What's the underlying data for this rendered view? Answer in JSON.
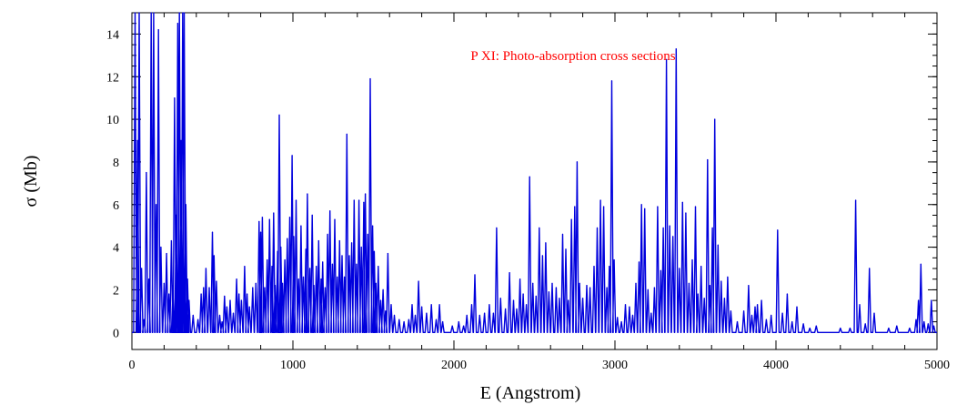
{
  "chart_data": {
    "type": "line",
    "title": "P XI: Photo-absorption cross sections",
    "xlabel": "E (Angstrom)",
    "ylabel": "σ (Mb)",
    "xlim": [
      0,
      5000
    ],
    "ylim": [
      -0.8,
      15
    ],
    "x_ticks": [
      0,
      1000,
      2000,
      3000,
      4000,
      5000
    ],
    "y_ticks": [
      0,
      2,
      4,
      6,
      8,
      10,
      12,
      14
    ],
    "x_minor_step": 200,
    "y_minor_step": 0.5,
    "grid": false,
    "colors": {
      "line": "#0000dd",
      "title": "#ff0000"
    },
    "series": [
      {
        "peaks": [
          [
            20,
            15
          ],
          [
            35,
            9
          ],
          [
            45,
            15
          ],
          [
            60,
            3
          ],
          [
            75,
            0.6
          ],
          [
            90,
            7.5
          ],
          [
            105,
            2.5
          ],
          [
            120,
            15
          ],
          [
            135,
            15
          ],
          [
            150,
            6
          ],
          [
            165,
            14.2
          ],
          [
            180,
            4
          ],
          [
            200,
            2.3
          ],
          [
            215,
            3.7
          ],
          [
            230,
            1.8
          ],
          [
            245,
            4.3
          ],
          [
            255,
            2.2
          ],
          [
            265,
            11
          ],
          [
            275,
            5.5
          ],
          [
            285,
            14.5
          ],
          [
            295,
            15
          ],
          [
            305,
            9
          ],
          [
            315,
            15
          ],
          [
            325,
            15
          ],
          [
            335,
            6
          ],
          [
            345,
            2.5
          ],
          [
            355,
            1.5
          ],
          [
            380,
            0.8
          ],
          [
            410,
            0.6
          ],
          [
            430,
            1.8
          ],
          [
            445,
            2.1
          ],
          [
            460,
            3
          ],
          [
            480,
            2.1
          ],
          [
            500,
            4.7
          ],
          [
            510,
            3.6
          ],
          [
            525,
            2.4
          ],
          [
            545,
            0.8
          ],
          [
            560,
            0.5
          ],
          [
            575,
            1.7
          ],
          [
            590,
            1.2
          ],
          [
            610,
            1.5
          ],
          [
            630,
            0.9
          ],
          [
            650,
            2.5
          ],
          [
            665,
            1.8
          ],
          [
            680,
            1.5
          ],
          [
            700,
            3.1
          ],
          [
            715,
            1.8
          ],
          [
            730,
            1.2
          ],
          [
            750,
            2.1
          ],
          [
            770,
            2.3
          ],
          [
            790,
            5.2
          ],
          [
            800,
            4.7
          ],
          [
            810,
            5.4
          ],
          [
            825,
            2.1
          ],
          [
            840,
            3.4
          ],
          [
            855,
            5.3
          ],
          [
            870,
            3.1
          ],
          [
            880,
            5.6
          ],
          [
            890,
            2.2
          ],
          [
            905,
            3.8
          ],
          [
            915,
            10.2
          ],
          [
            925,
            4
          ],
          [
            935,
            2.3
          ],
          [
            950,
            3.4
          ],
          [
            965,
            4.4
          ],
          [
            980,
            5.4
          ],
          [
            995,
            8.3
          ],
          [
            1005,
            4.5
          ],
          [
            1020,
            6.2
          ],
          [
            1035,
            2.5
          ],
          [
            1050,
            5
          ],
          [
            1065,
            2.6
          ],
          [
            1080,
            3.9
          ],
          [
            1090,
            6.5
          ],
          [
            1105,
            3
          ],
          [
            1120,
            5.5
          ],
          [
            1130,
            2.2
          ],
          [
            1145,
            3.1
          ],
          [
            1160,
            4.3
          ],
          [
            1175,
            2.5
          ],
          [
            1185,
            3.3
          ],
          [
            1200,
            2.1
          ],
          [
            1215,
            4.6
          ],
          [
            1230,
            5.7
          ],
          [
            1245,
            3.2
          ],
          [
            1260,
            5.3
          ],
          [
            1275,
            2.6
          ],
          [
            1290,
            4.3
          ],
          [
            1305,
            3.6
          ],
          [
            1320,
            2.6
          ],
          [
            1335,
            9.3
          ],
          [
            1350,
            3.6
          ],
          [
            1365,
            4.2
          ],
          [
            1380,
            6.2
          ],
          [
            1395,
            3.2
          ],
          [
            1410,
            6.2
          ],
          [
            1425,
            4
          ],
          [
            1440,
            6.1
          ],
          [
            1450,
            6.5
          ],
          [
            1465,
            4.6
          ],
          [
            1480,
            11.9
          ],
          [
            1495,
            5
          ],
          [
            1505,
            3.8
          ],
          [
            1515,
            2.3
          ],
          [
            1530,
            3.1
          ],
          [
            1545,
            1.5
          ],
          [
            1560,
            2
          ],
          [
            1575,
            1
          ],
          [
            1590,
            3.7
          ],
          [
            1610,
            1.3
          ],
          [
            1630,
            0.8
          ],
          [
            1660,
            0.6
          ],
          [
            1690,
            0.5
          ],
          [
            1720,
            0.6
          ],
          [
            1740,
            1.3
          ],
          [
            1760,
            0.8
          ],
          [
            1780,
            2.4
          ],
          [
            1800,
            1.2
          ],
          [
            1830,
            0.9
          ],
          [
            1860,
            1.3
          ],
          [
            1890,
            0.6
          ],
          [
            1910,
            1.3
          ],
          [
            1930,
            0.5
          ],
          [
            1990,
            0.3
          ],
          [
            2030,
            0.5
          ],
          [
            2060,
            0.3
          ],
          [
            2080,
            0.8
          ],
          [
            2110,
            1.3
          ],
          [
            2130,
            2.7
          ],
          [
            2160,
            0.8
          ],
          [
            2190,
            0.9
          ],
          [
            2220,
            1.3
          ],
          [
            2245,
            0.9
          ],
          [
            2265,
            4.9
          ],
          [
            2290,
            1.6
          ],
          [
            2320,
            1.1
          ],
          [
            2345,
            2.8
          ],
          [
            2370,
            1.5
          ],
          [
            2390,
            1.1
          ],
          [
            2410,
            2.5
          ],
          [
            2430,
            1.8
          ],
          [
            2450,
            1.3
          ],
          [
            2470,
            7.3
          ],
          [
            2490,
            2.3
          ],
          [
            2510,
            1.7
          ],
          [
            2530,
            4.9
          ],
          [
            2550,
            3.6
          ],
          [
            2570,
            4.2
          ],
          [
            2590,
            1.9
          ],
          [
            2610,
            2.3
          ],
          [
            2635,
            2.1
          ],
          [
            2655,
            1.6
          ],
          [
            2675,
            4.6
          ],
          [
            2695,
            3.9
          ],
          [
            2710,
            1.5
          ],
          [
            2730,
            5.3
          ],
          [
            2750,
            5.9
          ],
          [
            2765,
            8
          ],
          [
            2780,
            2.3
          ],
          [
            2800,
            1.6
          ],
          [
            2825,
            2.2
          ],
          [
            2845,
            2.1
          ],
          [
            2870,
            3.1
          ],
          [
            2890,
            4.9
          ],
          [
            2910,
            6.2
          ],
          [
            2930,
            5.9
          ],
          [
            2950,
            2.1
          ],
          [
            2965,
            3.1
          ],
          [
            2980,
            11.8
          ],
          [
            2995,
            3.4
          ],
          [
            3015,
            0.7
          ],
          [
            3040,
            0.5
          ],
          [
            3065,
            1.3
          ],
          [
            3090,
            1.2
          ],
          [
            3110,
            0.8
          ],
          [
            3130,
            2.3
          ],
          [
            3150,
            3.3
          ],
          [
            3165,
            6
          ],
          [
            3185,
            5.8
          ],
          [
            3205,
            2
          ],
          [
            3225,
            0.9
          ],
          [
            3245,
            2.1
          ],
          [
            3265,
            5.9
          ],
          [
            3285,
            2.9
          ],
          [
            3300,
            4.9
          ],
          [
            3320,
            12.8
          ],
          [
            3340,
            5
          ],
          [
            3360,
            4.5
          ],
          [
            3380,
            13.3
          ],
          [
            3400,
            3
          ],
          [
            3420,
            6.1
          ],
          [
            3440,
            5.6
          ],
          [
            3460,
            2.3
          ],
          [
            3480,
            3.4
          ],
          [
            3500,
            5.9
          ],
          [
            3515,
            1.8
          ],
          [
            3535,
            3.1
          ],
          [
            3555,
            1.6
          ],
          [
            3575,
            8.1
          ],
          [
            3590,
            2.2
          ],
          [
            3605,
            4.9
          ],
          [
            3620,
            10
          ],
          [
            3640,
            4.1
          ],
          [
            3660,
            2.4
          ],
          [
            3680,
            1.6
          ],
          [
            3700,
            2.6
          ],
          [
            3720,
            1
          ],
          [
            3760,
            0.5
          ],
          [
            3800,
            1
          ],
          [
            3830,
            2.2
          ],
          [
            3850,
            0.8
          ],
          [
            3870,
            1.2
          ],
          [
            3885,
            1.3
          ],
          [
            3910,
            1.5
          ],
          [
            3940,
            0.6
          ],
          [
            3970,
            0.8
          ],
          [
            4010,
            4.8
          ],
          [
            4040,
            0.9
          ],
          [
            4070,
            1.8
          ],
          [
            4100,
            0.5
          ],
          [
            4130,
            1.2
          ],
          [
            4170,
            0.4
          ],
          [
            4210,
            0.2
          ],
          [
            4250,
            0.3
          ],
          [
            4400,
            0.2
          ],
          [
            4460,
            0.2
          ],
          [
            4495,
            6.2
          ],
          [
            4520,
            1.3
          ],
          [
            4555,
            0.4
          ],
          [
            4580,
            3
          ],
          [
            4610,
            0.9
          ],
          [
            4700,
            0.2
          ],
          [
            4750,
            0.3
          ],
          [
            4830,
            0.2
          ],
          [
            4870,
            0.6
          ],
          [
            4885,
            1.5
          ],
          [
            4900,
            3.2
          ],
          [
            4920,
            0.5
          ],
          [
            4945,
            0.4
          ],
          [
            4965,
            1.5
          ],
          [
            4980,
            0.3
          ]
        ]
      }
    ]
  }
}
